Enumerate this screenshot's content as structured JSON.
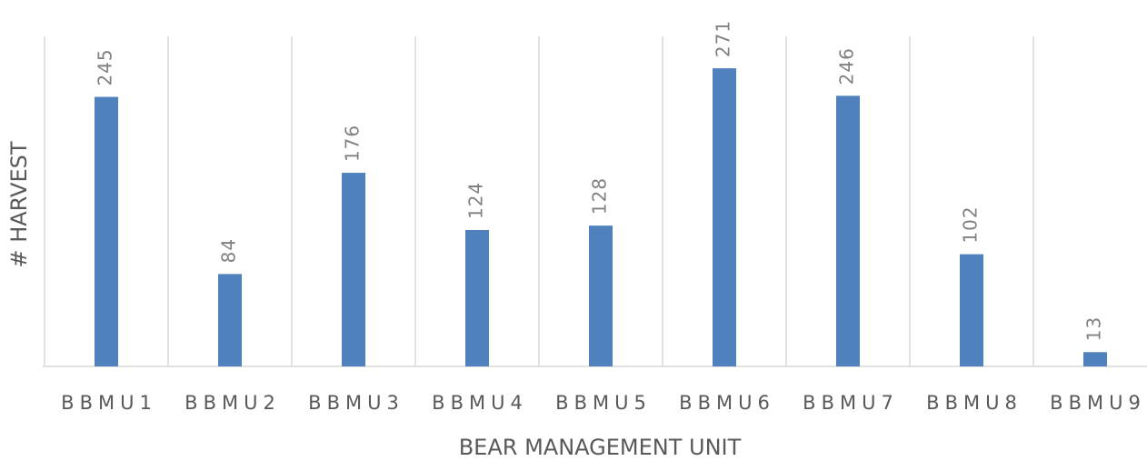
{
  "chart_data": {
    "type": "bar",
    "x_label": "BEAR MANAGEMENT UNIT",
    "y_label": "# HARVEST",
    "categories": [
      "BBMU1",
      "BBMU2",
      "BBMU3",
      "BBMU4",
      "BBMU5",
      "BBMU6",
      "BBMU7",
      "BBMU8",
      "BBMU9"
    ],
    "values": [
      245,
      84,
      176,
      124,
      128,
      271,
      246,
      102,
      13
    ],
    "color": "#4f81bd",
    "ylim": [
      0,
      300
    ]
  }
}
